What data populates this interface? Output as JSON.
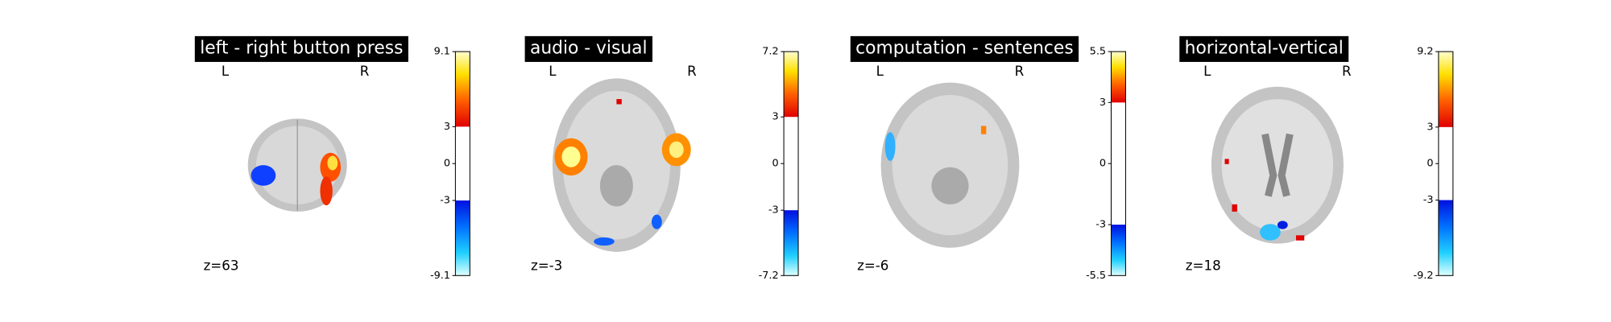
{
  "panels": [
    {
      "title": "left - right button press",
      "left": "L",
      "right": "R",
      "slice": "z=63",
      "colorbar": {
        "lim": [
          -9.1,
          9.1
        ],
        "ticks": [
          -9.1,
          -3,
          0,
          3,
          9.1
        ]
      }
    },
    {
      "title": "audio - visual",
      "left": "L",
      "right": "R",
      "slice": "z=-3",
      "colorbar": {
        "lim": [
          -7.2,
          7.2
        ],
        "ticks": [
          -7.2,
          -3,
          0,
          3,
          7.2
        ]
      }
    },
    {
      "title": "computation - sentences",
      "left": "L",
      "right": "R",
      "slice": "z=-6",
      "colorbar": {
        "lim": [
          -5.5,
          5.5
        ],
        "ticks": [
          -5.5,
          -3,
          0,
          3,
          5.5
        ]
      }
    },
    {
      "title": "horizontal-vertical",
      "left": "L",
      "right": "R",
      "slice": "z=18",
      "colorbar": {
        "lim": [
          -9.2,
          9.2
        ],
        "ticks": [
          -9.2,
          -3,
          0,
          3,
          9.2
        ]
      }
    }
  ]
}
